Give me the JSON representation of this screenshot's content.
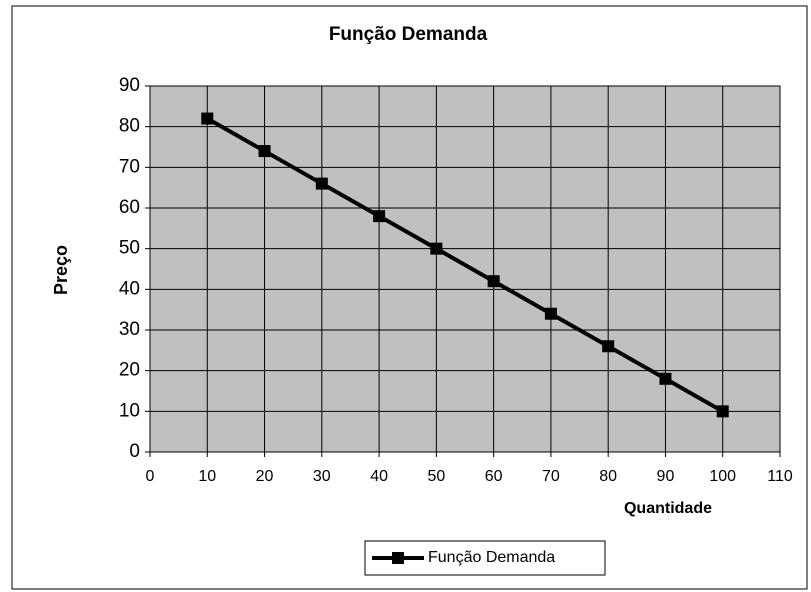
{
  "chart_data": {
    "type": "line",
    "title": "Função Demanda",
    "x_label": "Quantidade",
    "y_label": "Preço",
    "x": [
      10,
      20,
      30,
      40,
      50,
      60,
      70,
      80,
      90,
      100
    ],
    "series": [
      {
        "name": "Função Demanda",
        "color": "#000000",
        "values": [
          82,
          74,
          66,
          58,
          50,
          42,
          34,
          26,
          18,
          10
        ]
      }
    ],
    "xlim": [
      0,
      110
    ],
    "xticks": [
      0,
      10,
      20,
      30,
      40,
      50,
      60,
      70,
      80,
      90,
      100,
      110
    ],
    "ylim": [
      0,
      90
    ],
    "yticks": [
      0,
      10,
      20,
      30,
      40,
      50,
      60,
      70,
      80,
      90
    ],
    "grid": true,
    "legend": "bottom"
  }
}
